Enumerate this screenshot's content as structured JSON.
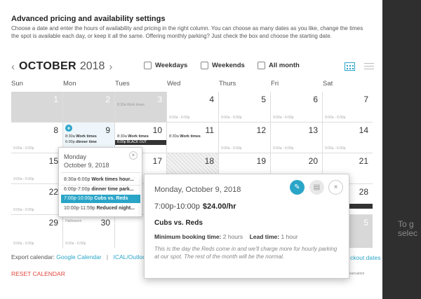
{
  "title": "Advanced pricing and availability settings",
  "description": "Choose a date and enter the hours of availability and pricing in the right column. You can choose as many dates as you like, change the times the spot is available each day, or keep it all the same. Offering monthly parking? Just check the box and choose the starting date.",
  "nav": {
    "prev_icon": "chevron-left-icon",
    "month": "OCTOBER",
    "year": "2018",
    "next_icon": "chevron-right-icon"
  },
  "checks": {
    "weekdays": "Weekdays",
    "weekends": "Weekends",
    "all_month": "All month"
  },
  "view_icons": {
    "calendar": "calendar-view-icon",
    "list": "list-view-icon"
  },
  "weekdays": [
    "Sun",
    "Mon",
    "Tues",
    "Wed",
    "Thurs",
    "Fri",
    "Sat"
  ],
  "calendar": {
    "d1": "1",
    "d2": "2",
    "d3": "3",
    "d4": "4",
    "d5": "5",
    "d6": "6",
    "d7": "7",
    "d8": "8",
    "d9": "9",
    "d10": "10",
    "d11": "11",
    "d12": "12",
    "d13": "13",
    "d14": "14",
    "d15": "15",
    "d17": "17",
    "d18": "18",
    "d19": "19",
    "d20": "20",
    "d21": "21",
    "d22": "22",
    "d28": "28",
    "d29": "29",
    "d30": "30",
    "d5b": "5",
    "hours": "9:00a - 6:00p",
    "work_times": "8:30a Work times",
    "ev_time_830": "8:30a",
    "ev_name_work": "Work times",
    "ev_time_600": "6:00p",
    "ev_name_dinner": "dinner time",
    "blackout_10": "6:00p BLACK OUT",
    "blackout_28": "ACK OUT",
    "halloween": "Halloween"
  },
  "footer": {
    "export_label": "Export calendar:",
    "google": "Google Calendar",
    "sep": "|",
    "ical": "ICAL/Outlook",
    "reset": "RESET CALENDAR",
    "blackout_link": "ckout dates",
    "reservation_note": "des a reservation"
  },
  "popover_day": {
    "day": "Monday",
    "date": "October 9, 2018",
    "close_icon": "×",
    "items": [
      {
        "time": "8:30a-6:00p",
        "name": "Work times hour..."
      },
      {
        "time": "6:00p-7:00p",
        "name": "dinner time park..."
      },
      {
        "time": "7:00p-10:00p",
        "name": "Cubs vs. Reds"
      },
      {
        "time": "10:00p-11:59p",
        "name": "Reduced night..."
      }
    ]
  },
  "popover_detail": {
    "date": "Monday, October 9, 2018",
    "time": "7:00p-10:00p",
    "price": "$24.00/hr",
    "name": "Cubs vs. Reds",
    "min_label": "Minimum booking time:",
    "min_value": "2 hours",
    "lead_label": "Lead time:",
    "lead_value": "1 hour",
    "notes": "This is the day the Reds come in and we'll charge more for hourly parking at our spot. The rest of the month will be the normal.",
    "edit_icon": "✎",
    "delete_icon": "▤",
    "close_icon": "×"
  },
  "side": {
    "hint1": "To g",
    "hint2": "selec"
  },
  "colors": {
    "accent": "#2aa5c8",
    "reset": "#e0473e",
    "sidebar": "#2f2f2f"
  }
}
